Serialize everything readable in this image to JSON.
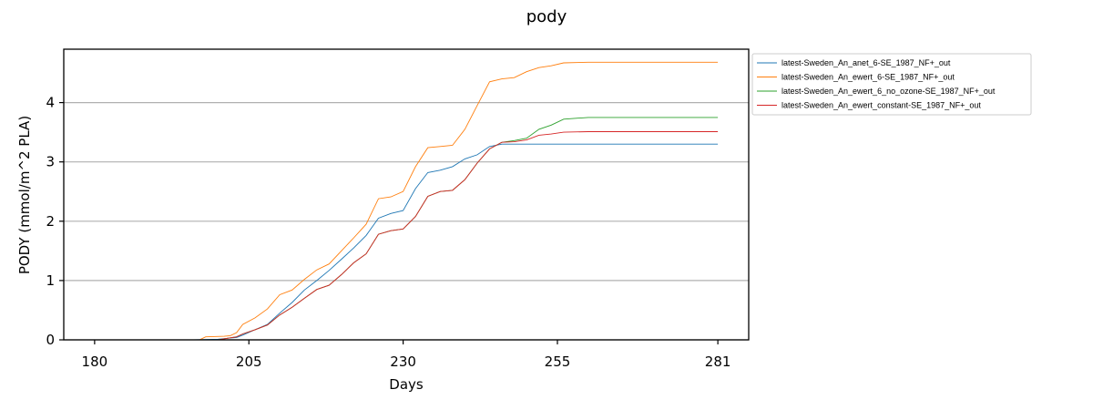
{
  "chart_data": {
    "type": "line",
    "title": "pody",
    "xlabel": "Days",
    "ylabel": "PODY (mmol/m^2 PLA)",
    "xlim": [
      175,
      286
    ],
    "ylim": [
      0,
      4.9
    ],
    "xticks": [
      180,
      205,
      230,
      255,
      281
    ],
    "yticks": [
      0,
      1,
      2,
      3,
      4
    ],
    "grid": "horizontal",
    "legend_position": "outside-right",
    "series": [
      {
        "name": "latest-Sweden_An_anet_6-SE_1987_NF+_out",
        "color": "#1f77b4",
        "x": [
          180,
          196,
          200,
          203,
          204,
          206,
          208,
          210,
          212,
          214,
          216,
          218,
          220,
          222,
          224,
          226,
          228,
          230,
          232,
          234,
          236,
          238,
          240,
          242,
          244,
          246,
          248,
          250,
          252,
          254,
          256,
          260,
          270,
          281
        ],
        "y": [
          0,
          0,
          0.01,
          0.04,
          0.08,
          0.17,
          0.26,
          0.45,
          0.63,
          0.84,
          1.0,
          1.17,
          1.36,
          1.55,
          1.76,
          2.05,
          2.13,
          2.18,
          2.55,
          2.82,
          2.86,
          2.92,
          3.05,
          3.12,
          3.26,
          3.3,
          3.3,
          3.3,
          3.3,
          3.3,
          3.3,
          3.3,
          3.3,
          3.3
        ]
      },
      {
        "name": "latest-Sweden_An_ewert_6-SE_1987_NF+_out",
        "color": "#ff7f0e",
        "x": [
          180,
          197,
          198,
          201,
          202,
          203,
          204,
          206,
          208,
          210,
          212,
          214,
          216,
          218,
          220,
          222,
          224,
          226,
          228,
          230,
          232,
          234,
          236,
          238,
          240,
          242,
          244,
          246,
          248,
          250,
          252,
          254,
          256,
          260,
          270,
          281
        ],
        "y": [
          0,
          0,
          0.05,
          0.06,
          0.07,
          0.12,
          0.26,
          0.37,
          0.52,
          0.76,
          0.84,
          1.02,
          1.18,
          1.28,
          1.5,
          1.72,
          1.95,
          2.38,
          2.41,
          2.5,
          2.92,
          3.24,
          3.26,
          3.28,
          3.55,
          3.95,
          4.35,
          4.4,
          4.42,
          4.52,
          4.59,
          4.62,
          4.67,
          4.68,
          4.68,
          4.68
        ]
      },
      {
        "name": "latest-Sweden_An_ewert_6_no_ozone-SE_1987_NF+_out",
        "color": "#2ca02c",
        "x": [
          180,
          200,
          203,
          204,
          206,
          208,
          210,
          212,
          214,
          216,
          218,
          220,
          222,
          224,
          226,
          228,
          230,
          232,
          234,
          236,
          238,
          240,
          242,
          244,
          246,
          248,
          250,
          252,
          254,
          256,
          260,
          270,
          281
        ],
        "y": [
          0,
          0,
          0.05,
          0.1,
          0.17,
          0.25,
          0.42,
          0.55,
          0.7,
          0.85,
          0.92,
          1.1,
          1.3,
          1.45,
          1.78,
          1.84,
          1.87,
          2.08,
          2.42,
          2.5,
          2.52,
          2.7,
          2.98,
          3.22,
          3.33,
          3.36,
          3.4,
          3.55,
          3.62,
          3.72,
          3.75,
          3.75,
          3.75
        ]
      },
      {
        "name": "latest-Sweden_An_ewert_constant-SE_1987_NF+_out",
        "color": "#d62728",
        "x": [
          180,
          200,
          203,
          204,
          206,
          208,
          210,
          212,
          214,
          216,
          218,
          220,
          222,
          224,
          226,
          228,
          230,
          232,
          234,
          236,
          238,
          240,
          242,
          244,
          246,
          248,
          250,
          252,
          254,
          256,
          260,
          270,
          281
        ],
        "y": [
          0,
          0,
          0.05,
          0.1,
          0.17,
          0.25,
          0.42,
          0.55,
          0.7,
          0.85,
          0.92,
          1.1,
          1.3,
          1.45,
          1.78,
          1.84,
          1.87,
          2.08,
          2.42,
          2.5,
          2.52,
          2.7,
          2.98,
          3.22,
          3.33,
          3.34,
          3.37,
          3.45,
          3.47,
          3.5,
          3.51,
          3.51,
          3.51
        ]
      }
    ]
  }
}
